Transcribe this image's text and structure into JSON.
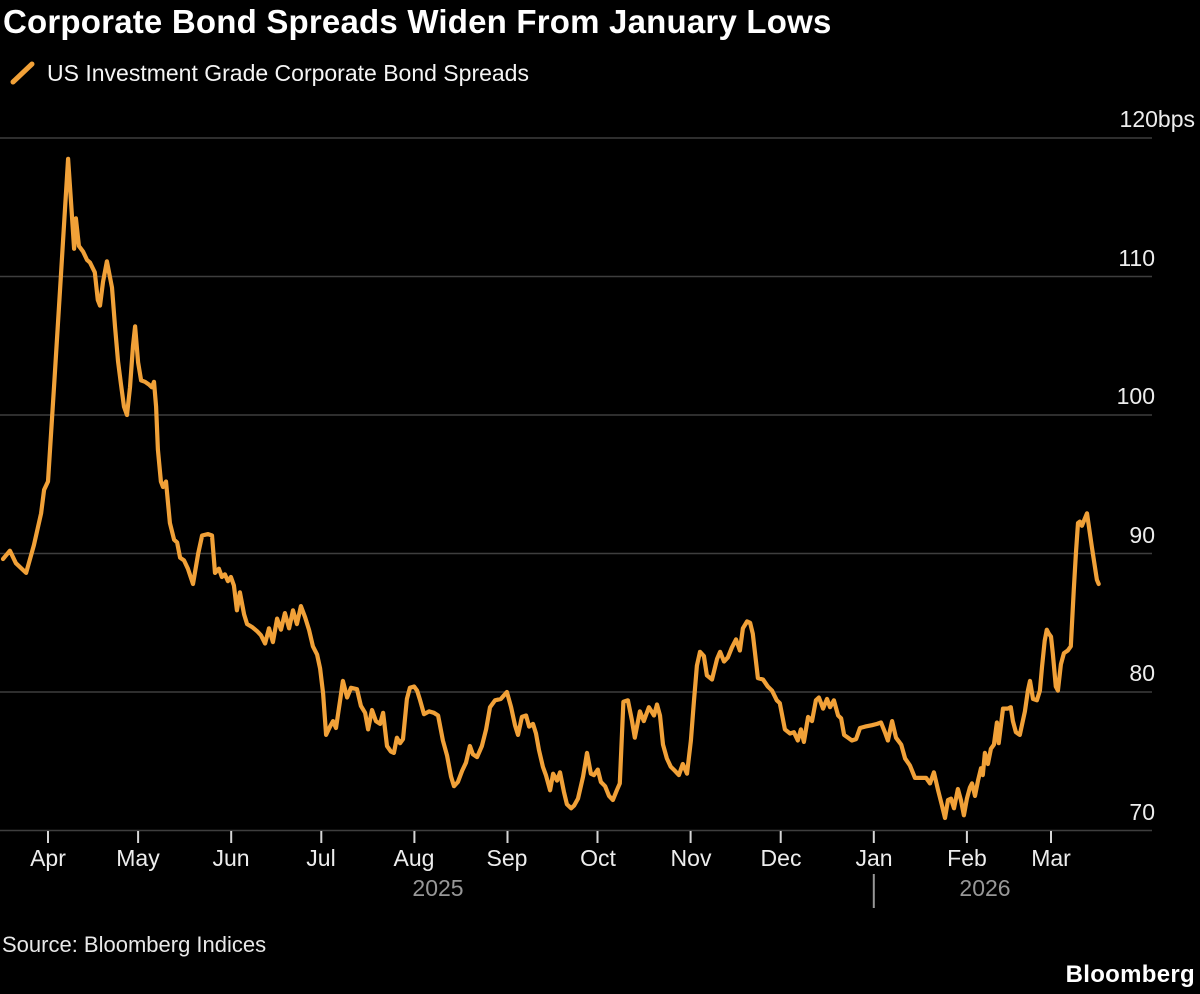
{
  "header": {
    "title": "Corporate Bond Spreads Widen From January Lows",
    "legend_label": "US Investment Grade Corporate Bond Spreads"
  },
  "footer": {
    "source": "Source: Bloomberg Indices",
    "brand": "Bloomberg"
  },
  "colors": {
    "background": "#000000",
    "line": "#F1A138",
    "grid": "#3E3E3E",
    "tick": "#D6D6D6",
    "axis_text": "#EDEDED",
    "year_text": "#979797",
    "title_text": "#FFFFFF"
  },
  "chart_data": {
    "type": "line",
    "title": "Corporate Bond Spreads Widen From January Lows",
    "series_name": "US Investment Grade Corporate Bond Spreads",
    "y_unit": "bps",
    "ylim": [
      68,
      121
    ],
    "y_ticks": [
      120,
      110,
      100,
      90,
      80,
      70
    ],
    "y_tick_labels": [
      "120bps",
      "110",
      "100",
      "90",
      "80",
      "70"
    ],
    "grid": true,
    "legend_position": "top-left",
    "x_unit": "days since 2025-04-01",
    "x_epoch": "2025-04-01",
    "x_ticks": [
      {
        "day": 0,
        "label": "Apr"
      },
      {
        "day": 30,
        "label": "May"
      },
      {
        "day": 61,
        "label": "Jun"
      },
      {
        "day": 91,
        "label": "Jul"
      },
      {
        "day": 122,
        "label": "Aug"
      },
      {
        "day": 153,
        "label": "Sep"
      },
      {
        "day": 183,
        "label": "Oct"
      },
      {
        "day": 214,
        "label": "Nov"
      },
      {
        "day": 244,
        "label": "Dec"
      },
      {
        "day": 275,
        "label": "Jan"
      },
      {
        "day": 306,
        "label": "Feb"
      },
      {
        "day": 334,
        "label": "Mar"
      }
    ],
    "year_divider_day": 275,
    "year_labels": [
      {
        "day": 130,
        "label": "2025"
      },
      {
        "day": 312,
        "label": "2026"
      }
    ],
    "points": [
      [
        -15,
        89.6
      ],
      [
        -12.7,
        90.2
      ],
      [
        -10.7,
        89.3
      ],
      [
        -7.3,
        88.6
      ],
      [
        -4.7,
        90.6
      ],
      [
        -2.3,
        92.9
      ],
      [
        -1.3,
        94.6
      ],
      [
        0,
        95.2
      ],
      [
        2,
        102
      ],
      [
        4,
        109
      ],
      [
        5.7,
        115
      ],
      [
        6.7,
        118.5
      ],
      [
        7.7,
        115.3
      ],
      [
        8.7,
        112
      ],
      [
        9.3,
        114.2
      ],
      [
        10.3,
        112.2
      ],
      [
        11.7,
        111.8
      ],
      [
        13,
        111.2
      ],
      [
        14,
        111
      ],
      [
        15.6,
        110.3
      ],
      [
        16.6,
        108.3
      ],
      [
        17.3,
        107.9
      ],
      [
        18.3,
        109.6
      ],
      [
        19.6,
        111.1
      ],
      [
        21.3,
        109.2
      ],
      [
        22.3,
        106.4
      ],
      [
        23.3,
        103.9
      ],
      [
        24.3,
        102.2
      ],
      [
        25.3,
        100.6
      ],
      [
        26.3,
        100
      ],
      [
        27.3,
        102
      ],
      [
        28.3,
        105
      ],
      [
        29,
        106.4
      ],
      [
        30,
        103.8
      ],
      [
        31,
        102.5
      ],
      [
        32.3,
        102.4
      ],
      [
        33.6,
        102.2
      ],
      [
        34.6,
        102
      ],
      [
        35.3,
        102.4
      ],
      [
        36,
        100.6
      ],
      [
        36.6,
        97.5
      ],
      [
        37.6,
        95.2
      ],
      [
        38.3,
        94.8
      ],
      [
        39.3,
        95.2
      ],
      [
        40.6,
        92.2
      ],
      [
        42,
        91
      ],
      [
        43,
        90.8
      ],
      [
        44,
        89.7
      ],
      [
        45.3,
        89.5
      ],
      [
        46.6,
        88.9
      ],
      [
        48.3,
        87.8
      ],
      [
        50,
        90
      ],
      [
        51.3,
        91.3
      ],
      [
        53.3,
        91.4
      ],
      [
        54.6,
        91.3
      ],
      [
        55.6,
        88.6
      ],
      [
        56.9,
        88.9
      ],
      [
        57.9,
        88.3
      ],
      [
        58.9,
        88.5
      ],
      [
        59.9,
        88
      ],
      [
        60.9,
        88.3
      ],
      [
        61.9,
        87.7
      ],
      [
        62.9,
        85.9
      ],
      [
        63.9,
        87.2
      ],
      [
        65.3,
        85.6
      ],
      [
        66.3,
        84.9
      ],
      [
        67.9,
        84.7
      ],
      [
        69.6,
        84.4
      ],
      [
        70.9,
        84.1
      ],
      [
        72.3,
        83.5
      ],
      [
        73.6,
        84.6
      ],
      [
        74.9,
        83.6
      ],
      [
        76.3,
        85.3
      ],
      [
        77.6,
        84.5
      ],
      [
        78.9,
        85.7
      ],
      [
        80.3,
        84.6
      ],
      [
        81.6,
        85.9
      ],
      [
        82.9,
        84.9
      ],
      [
        84.2,
        86.2
      ],
      [
        85.6,
        85.4
      ],
      [
        86.9,
        84.5
      ],
      [
        88.2,
        83.3
      ],
      [
        89.6,
        82.7
      ],
      [
        90.6,
        81.7
      ],
      [
        91.6,
        79.9
      ],
      [
        92.6,
        76.9
      ],
      [
        93.9,
        77.5
      ],
      [
        94.9,
        77.9
      ],
      [
        95.9,
        77.4
      ],
      [
        97.2,
        79.3
      ],
      [
        98.2,
        80.8
      ],
      [
        99.6,
        79.6
      ],
      [
        100.9,
        80.3
      ],
      [
        102.9,
        80.2
      ],
      [
        104.2,
        79
      ],
      [
        105.6,
        78.5
      ],
      [
        106.6,
        77.3
      ],
      [
        107.9,
        78.7
      ],
      [
        109.2,
        77.9
      ],
      [
        110.6,
        77.7
      ],
      [
        111.6,
        78.5
      ],
      [
        112.9,
        76.1
      ],
      [
        114.2,
        75.7
      ],
      [
        115.2,
        75.6
      ],
      [
        116.2,
        76.7
      ],
      [
        117.2,
        76.3
      ],
      [
        118.2,
        76.6
      ],
      [
        119.5,
        79.5
      ],
      [
        120.5,
        80.3
      ],
      [
        121.9,
        80.4
      ],
      [
        122.9,
        80.1
      ],
      [
        123.9,
        79.4
      ],
      [
        125.2,
        78.4
      ],
      [
        126.9,
        78.6
      ],
      [
        128.5,
        78.5
      ],
      [
        129.9,
        78.3
      ],
      [
        131.5,
        76.5
      ],
      [
        132.9,
        75.4
      ],
      [
        134.2,
        73.9
      ],
      [
        135.2,
        73.2
      ],
      [
        136.5,
        73.5
      ],
      [
        137.9,
        74.3
      ],
      [
        139.2,
        74.9
      ],
      [
        140.5,
        76.1
      ],
      [
        141.5,
        75.5
      ],
      [
        142.9,
        75.3
      ],
      [
        144.5,
        76.1
      ],
      [
        145.9,
        77.3
      ],
      [
        147.2,
        78.9
      ],
      [
        148.9,
        79.4
      ],
      [
        150.8,
        79.5
      ],
      [
        152.8,
        80
      ],
      [
        154.2,
        78.9
      ],
      [
        155.5,
        77.6
      ],
      [
        156.5,
        76.9
      ],
      [
        157.8,
        78.2
      ],
      [
        159.2,
        78.3
      ],
      [
        160.2,
        77.5
      ],
      [
        161.5,
        77.7
      ],
      [
        162.5,
        77
      ],
      [
        163.5,
        75.8
      ],
      [
        164.8,
        74.6
      ],
      [
        165.8,
        74
      ],
      [
        167.2,
        72.9
      ],
      [
        168.2,
        74.1
      ],
      [
        169.5,
        73.6
      ],
      [
        170.5,
        74.2
      ],
      [
        171.8,
        72.8
      ],
      [
        172.8,
        71.9
      ],
      [
        174.2,
        71.6
      ],
      [
        175.2,
        71.8
      ],
      [
        176.5,
        72.3
      ],
      [
        178.2,
        73.9
      ],
      [
        179.5,
        75.6
      ],
      [
        180.8,
        74.1
      ],
      [
        181.8,
        74
      ],
      [
        183.1,
        74.4
      ],
      [
        184.1,
        73.5
      ],
      [
        185.5,
        73.2
      ],
      [
        186.8,
        72.5
      ],
      [
        188.1,
        72.2
      ],
      [
        189.4,
        72.9
      ],
      [
        190.4,
        73.4
      ],
      [
        191.6,
        79.3
      ],
      [
        193.1,
        79.4
      ],
      [
        194.4,
        78
      ],
      [
        195.4,
        76.7
      ],
      [
        197.1,
        78.6
      ],
      [
        198.4,
        77.9
      ],
      [
        200.1,
        78.9
      ],
      [
        201.8,
        78.3
      ],
      [
        202.8,
        79.1
      ],
      [
        203.8,
        78.3
      ],
      [
        204.8,
        76.2
      ],
      [
        206.1,
        75.2
      ],
      [
        207.4,
        74.6
      ],
      [
        208.8,
        74.3
      ],
      [
        210.1,
        74
      ],
      [
        211.4,
        74.8
      ],
      [
        212.8,
        74.1
      ],
      [
        214.1,
        76.5
      ],
      [
        215.1,
        79.3
      ],
      [
        216.1,
        81.9
      ],
      [
        217.1,
        82.9
      ],
      [
        218.4,
        82.6
      ],
      [
        219.4,
        81.2
      ],
      [
        221.1,
        80.9
      ],
      [
        222.8,
        82.4
      ],
      [
        223.8,
        82.9
      ],
      [
        225.1,
        82.2
      ],
      [
        226.4,
        82.5
      ],
      [
        227.7,
        83.2
      ],
      [
        229.1,
        83.8
      ],
      [
        230.4,
        83
      ],
      [
        231.4,
        84.6
      ],
      [
        232.8,
        85.1
      ],
      [
        233.8,
        85
      ],
      [
        234.7,
        84.2
      ],
      [
        236.4,
        81
      ],
      [
        238.1,
        80.9
      ],
      [
        239.7,
        80.4
      ],
      [
        241.1,
        80.1
      ],
      [
        242.7,
        79.4
      ],
      [
        243.7,
        79.2
      ],
      [
        245.4,
        77.3
      ],
      [
        247.1,
        77
      ],
      [
        248.4,
        77.1
      ],
      [
        249.7,
        76.5
      ],
      [
        250.7,
        77.3
      ],
      [
        251.7,
        76.4
      ],
      [
        253.1,
        78.2
      ],
      [
        254.4,
        77.9
      ],
      [
        255.7,
        79.4
      ],
      [
        256.7,
        79.6
      ],
      [
        258.1,
        78.8
      ],
      [
        259.4,
        79.5
      ],
      [
        260.4,
        78.9
      ],
      [
        261.7,
        79.4
      ],
      [
        263.1,
        78.3
      ],
      [
        264.1,
        78.1
      ],
      [
        265.1,
        76.9
      ],
      [
        266.4,
        76.7
      ],
      [
        267.7,
        76.5
      ],
      [
        269.1,
        76.6
      ],
      [
        270.4,
        77.4
      ],
      [
        272.1,
        77.5
      ],
      [
        274.4,
        77.6
      ],
      [
        276.1,
        77.7
      ],
      [
        277.4,
        77.8
      ],
      [
        278.7,
        77.1
      ],
      [
        279.7,
        76.5
      ],
      [
        281.1,
        77.9
      ],
      [
        282.4,
        76.7
      ],
      [
        284.1,
        76.2
      ],
      [
        285.4,
        75.2
      ],
      [
        287,
        74.7
      ],
      [
        288.7,
        73.8
      ],
      [
        290.7,
        73.8
      ],
      [
        292.4,
        73.8
      ],
      [
        293.7,
        73.4
      ],
      [
        295,
        74.2
      ],
      [
        296.4,
        72.9
      ],
      [
        297.7,
        71.8
      ],
      [
        298.7,
        70.9
      ],
      [
        299.7,
        72.2
      ],
      [
        300.7,
        72.3
      ],
      [
        301.7,
        71.6
      ],
      [
        303,
        73
      ],
      [
        304,
        72.2
      ],
      [
        305,
        71.1
      ],
      [
        306,
        72.3
      ],
      [
        307,
        73.1
      ],
      [
        307.7,
        73.4
      ],
      [
        308.7,
        72.5
      ],
      [
        309.7,
        73.6
      ],
      [
        310.7,
        74.5
      ],
      [
        311.3,
        74
      ],
      [
        312,
        75.6
      ],
      [
        313,
        74.8
      ],
      [
        314,
        75.9
      ],
      [
        315,
        76.2
      ],
      [
        316,
        77.8
      ],
      [
        316.6,
        76.3
      ],
      [
        318,
        78.8
      ],
      [
        319.6,
        78.8
      ],
      [
        320.6,
        78.9
      ],
      [
        321.3,
        77.9
      ],
      [
        322.3,
        77.1
      ],
      [
        323.6,
        76.9
      ],
      [
        324.6,
        77.9
      ],
      [
        325.3,
        78.6
      ],
      [
        326.3,
        80.1
      ],
      [
        327,
        80.8
      ],
      [
        328,
        79.5
      ],
      [
        329.3,
        79.4
      ],
      [
        330.3,
        80.1
      ],
      [
        331,
        81.8
      ],
      [
        331.9,
        83.7
      ],
      [
        332.6,
        84.5
      ],
      [
        333.3,
        84.2
      ],
      [
        334,
        84
      ],
      [
        334.6,
        82.8
      ],
      [
        335.6,
        80.4
      ],
      [
        336.3,
        80.1
      ],
      [
        337.3,
        82
      ],
      [
        338.3,
        82.8
      ],
      [
        339.6,
        83
      ],
      [
        340.6,
        83.3
      ],
      [
        341.6,
        87.4
      ],
      [
        342.3,
        90
      ],
      [
        343,
        92.2
      ],
      [
        343.6,
        92.3
      ],
      [
        344.3,
        92
      ],
      [
        346,
        92.9
      ],
      [
        347.6,
        90.5
      ],
      [
        349.3,
        88.1
      ],
      [
        349.9,
        87.8
      ]
    ]
  }
}
